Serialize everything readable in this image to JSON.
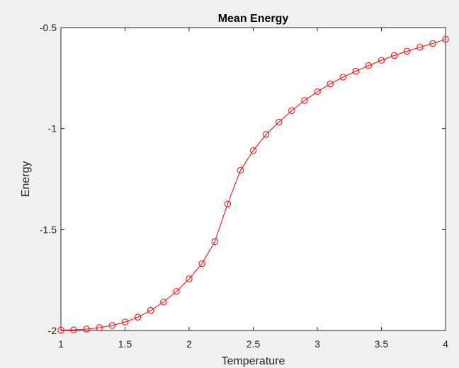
{
  "chart_data": {
    "type": "line",
    "title": "Mean Energy",
    "xlabel": "Temperature",
    "ylabel": "Energy",
    "xlim": [
      1,
      4
    ],
    "ylim": [
      -2,
      -0.5
    ],
    "xticks": [
      1,
      1.5,
      2,
      2.5,
      3,
      3.5,
      4
    ],
    "yticks": [
      -2,
      -1.5,
      -1,
      -0.5
    ],
    "xtick_labels": [
      "1",
      "1.5",
      "2",
      "2.5",
      "3",
      "3.5",
      "4"
    ],
    "ytick_labels": [
      "-2",
      "-1.5",
      "-1",
      "-0.5"
    ],
    "grid": false,
    "marker": "circle",
    "series_color": "#ff0000",
    "series": [
      {
        "x": [
          1.0,
          1.1,
          1.2,
          1.3,
          1.4,
          1.5,
          1.6,
          1.7,
          1.8,
          1.9,
          2.0,
          2.1,
          2.2,
          2.3,
          2.4,
          2.5,
          2.6,
          2.7,
          2.8,
          2.9,
          3.0,
          3.1,
          3.2,
          3.3,
          3.4,
          3.5,
          3.6,
          3.7,
          3.8,
          3.9,
          4.0
        ],
        "y": [
          -1.998,
          -1.997,
          -1.993,
          -1.986,
          -1.975,
          -1.958,
          -1.934,
          -1.901,
          -1.859,
          -1.807,
          -1.744,
          -1.669,
          -1.56,
          -1.374,
          -1.207,
          -1.109,
          -1.029,
          -0.968,
          -0.911,
          -0.861,
          -0.818,
          -0.779,
          -0.745,
          -0.716,
          -0.688,
          -0.662,
          -0.638,
          -0.617,
          -0.597,
          -0.579,
          -0.558
        ]
      }
    ]
  }
}
